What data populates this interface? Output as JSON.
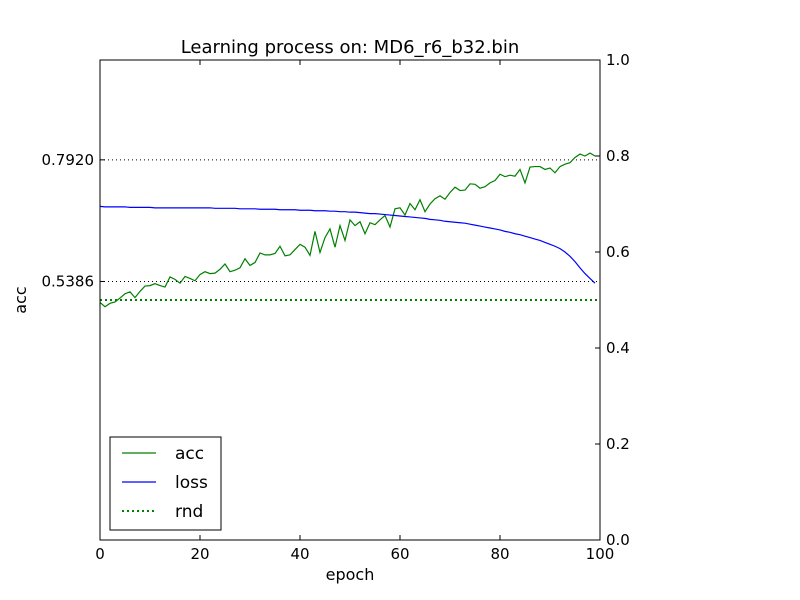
{
  "chart_data": {
    "type": "line",
    "title": "Learning process on: MD6_r6_b32.bin",
    "xlabel": "epoch",
    "ylabel": "acc",
    "xlim": [
      0,
      100
    ],
    "ylim": [
      0,
      1.0
    ],
    "x_ticks": [
      "0",
      "20",
      "40",
      "60",
      "80",
      "100"
    ],
    "left_ticks": [
      {
        "value": 0.792,
        "label": "0.7920"
      },
      {
        "value": 0.5386,
        "label": "0.5386"
      }
    ],
    "right_ticks": [
      "0.0",
      "0.2",
      "0.4",
      "0.6",
      "0.8",
      "1.0"
    ],
    "hlines": [
      0.792,
      0.5386
    ],
    "grid": false,
    "legend_position": "lower-left",
    "series": [
      {
        "name": "acc",
        "color": "#008000",
        "style": "solid",
        "values": [
          0.495,
          0.486,
          0.493,
          0.496,
          0.504,
          0.513,
          0.517,
          0.505,
          0.518,
          0.529,
          0.53,
          0.534,
          0.53,
          0.527,
          0.548,
          0.543,
          0.535,
          0.549,
          0.545,
          0.54,
          0.553,
          0.559,
          0.555,
          0.556,
          0.564,
          0.575,
          0.559,
          0.562,
          0.567,
          0.586,
          0.572,
          0.578,
          0.598,
          0.594,
          0.594,
          0.597,
          0.612,
          0.592,
          0.594,
          0.605,
          0.616,
          0.61,
          0.593,
          0.643,
          0.599,
          0.63,
          0.648,
          0.61,
          0.655,
          0.624,
          0.667,
          0.655,
          0.663,
          0.638,
          0.661,
          0.657,
          0.667,
          0.676,
          0.652,
          0.69,
          0.692,
          0.677,
          0.701,
          0.688,
          0.709,
          0.684,
          0.7,
          0.711,
          0.717,
          0.71,
          0.724,
          0.735,
          0.728,
          0.729,
          0.742,
          0.741,
          0.733,
          0.736,
          0.744,
          0.749,
          0.762,
          0.757,
          0.76,
          0.758,
          0.772,
          0.744,
          0.777,
          0.778,
          0.778,
          0.772,
          0.775,
          0.765,
          0.778,
          0.783,
          0.786,
          0.797,
          0.804,
          0.8,
          0.806,
          0.8
        ]
      },
      {
        "name": "loss",
        "color": "#0000ff",
        "style": "solid",
        "values": [
          0.695,
          0.694,
          0.694,
          0.694,
          0.694,
          0.694,
          0.693,
          0.693,
          0.693,
          0.693,
          0.693,
          0.692,
          0.692,
          0.692,
          0.692,
          0.692,
          0.692,
          0.692,
          0.692,
          0.692,
          0.692,
          0.692,
          0.692,
          0.691,
          0.691,
          0.691,
          0.691,
          0.691,
          0.69,
          0.69,
          0.69,
          0.69,
          0.689,
          0.689,
          0.689,
          0.689,
          0.688,
          0.688,
          0.688,
          0.688,
          0.687,
          0.687,
          0.687,
          0.686,
          0.686,
          0.686,
          0.685,
          0.685,
          0.684,
          0.684,
          0.683,
          0.683,
          0.682,
          0.681,
          0.68,
          0.68,
          0.679,
          0.678,
          0.677,
          0.676,
          0.675,
          0.674,
          0.673,
          0.672,
          0.671,
          0.67,
          0.668,
          0.667,
          0.666,
          0.664,
          0.663,
          0.662,
          0.661,
          0.66,
          0.658,
          0.656,
          0.654,
          0.652,
          0.65,
          0.648,
          0.646,
          0.643,
          0.641,
          0.638,
          0.636,
          0.633,
          0.63,
          0.627,
          0.624,
          0.62,
          0.616,
          0.612,
          0.607,
          0.6,
          0.591,
          0.58,
          0.567,
          0.555,
          0.545,
          0.535
        ]
      },
      {
        "name": "rnd",
        "color": "#008000",
        "style": "dotted",
        "values": [
          0.5,
          0.5
        ]
      }
    ]
  }
}
